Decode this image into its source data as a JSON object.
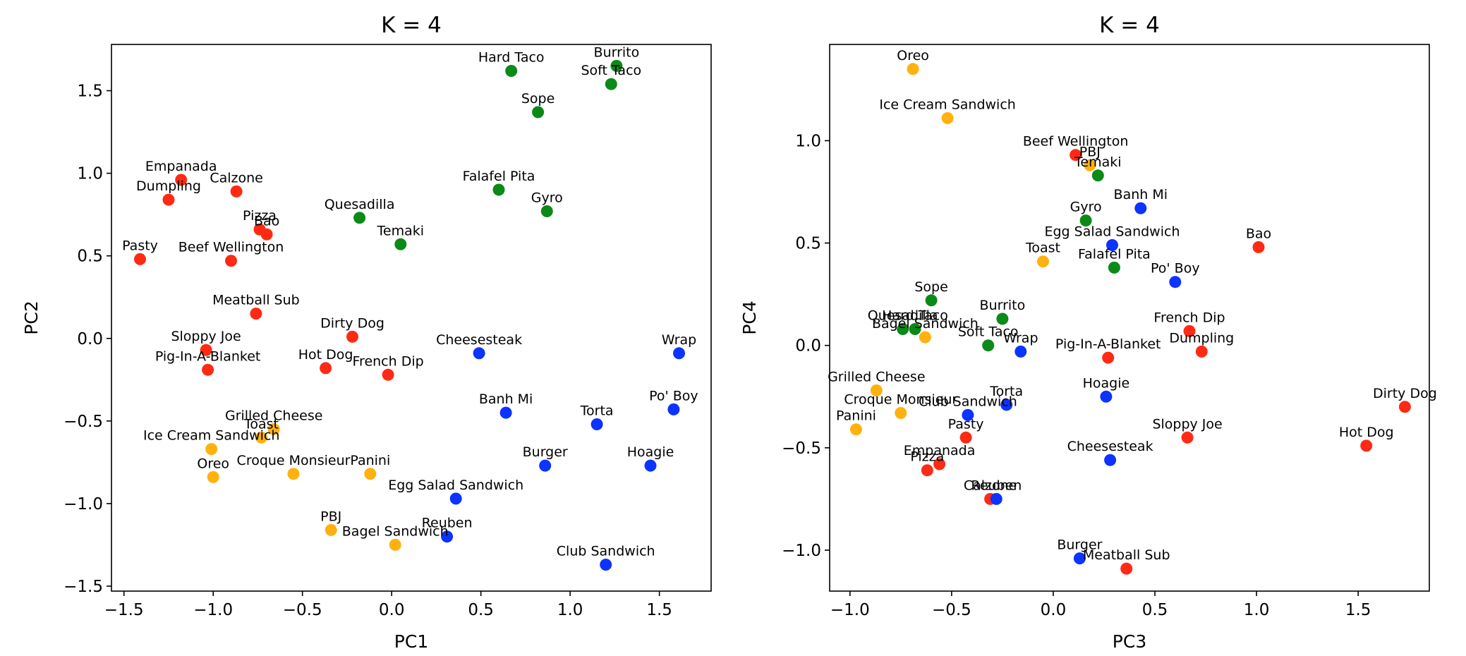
{
  "chart_data": [
    {
      "type": "scatter",
      "title": "K = 4",
      "xlabel": "PC1",
      "ylabel": "PC2",
      "xlim": [
        -1.57,
        1.79
      ],
      "ylim": [
        -1.53,
        1.78
      ],
      "xticks": [
        -1.5,
        -1.0,
        -0.5,
        0.0,
        0.5,
        1.0,
        1.5
      ],
      "xtick_labels": [
        "−1.5",
        "−1.0",
        "−0.5",
        "0.0",
        "0.5",
        "1.0",
        "1.5"
      ],
      "yticks": [
        -1.5,
        -1.0,
        -0.5,
        0.0,
        0.5,
        1.0,
        1.5
      ],
      "ytick_labels": [
        "−1.5",
        "−1.0",
        "−0.5",
        "0.0",
        "0.5",
        "1.0",
        "1.5"
      ],
      "grid": false,
      "points": [
        {
          "label": "Hard Taco",
          "x": 0.67,
          "y": 1.62,
          "cluster": "green"
        },
        {
          "label": "Burrito",
          "x": 1.26,
          "y": 1.65,
          "cluster": "green"
        },
        {
          "label": "Soft Taco",
          "x": 1.23,
          "y": 1.54,
          "cluster": "green"
        },
        {
          "label": "Sope",
          "x": 0.82,
          "y": 1.37,
          "cluster": "green"
        },
        {
          "label": "Falafel Pita",
          "x": 0.6,
          "y": 0.9,
          "cluster": "green"
        },
        {
          "label": "Gyro",
          "x": 0.87,
          "y": 0.77,
          "cluster": "green"
        },
        {
          "label": "Quesadilla",
          "x": -0.18,
          "y": 0.73,
          "cluster": "green"
        },
        {
          "label": "Temaki",
          "x": 0.05,
          "y": 0.57,
          "cluster": "green"
        },
        {
          "label": "Empanada",
          "x": -1.18,
          "y": 0.96,
          "cluster": "red"
        },
        {
          "label": "Calzone",
          "x": -0.87,
          "y": 0.89,
          "cluster": "red"
        },
        {
          "label": "Dumpling",
          "x": -1.25,
          "y": 0.84,
          "cluster": "red"
        },
        {
          "label": "Pizza",
          "x": -0.74,
          "y": 0.66,
          "cluster": "red"
        },
        {
          "label": "Bao",
          "x": -0.7,
          "y": 0.63,
          "cluster": "red"
        },
        {
          "label": "Pasty",
          "x": -1.41,
          "y": 0.48,
          "cluster": "red"
        },
        {
          "label": "Beef Wellington",
          "x": -0.9,
          "y": 0.47,
          "cluster": "red"
        },
        {
          "label": "Meatball Sub",
          "x": -0.76,
          "y": 0.15,
          "cluster": "red"
        },
        {
          "label": "Dirty Dog",
          "x": -0.22,
          "y": 0.01,
          "cluster": "red"
        },
        {
          "label": "Sloppy Joe",
          "x": -1.04,
          "y": -0.07,
          "cluster": "red"
        },
        {
          "label": "Pig-In-A-Blanket",
          "x": -1.03,
          "y": -0.19,
          "cluster": "red"
        },
        {
          "label": "Hot Dog",
          "x": -0.37,
          "y": -0.18,
          "cluster": "red"
        },
        {
          "label": "French Dip",
          "x": -0.02,
          "y": -0.22,
          "cluster": "red"
        },
        {
          "label": "Cheesesteak",
          "x": 0.49,
          "y": -0.09,
          "cluster": "blue"
        },
        {
          "label": "Wrap",
          "x": 1.61,
          "y": -0.09,
          "cluster": "blue"
        },
        {
          "label": "Banh Mi",
          "x": 0.64,
          "y": -0.45,
          "cluster": "blue"
        },
        {
          "label": "Torta",
          "x": 1.15,
          "y": -0.52,
          "cluster": "blue"
        },
        {
          "label": "Po' Boy",
          "x": 1.58,
          "y": -0.43,
          "cluster": "blue"
        },
        {
          "label": "Burger",
          "x": 0.86,
          "y": -0.77,
          "cluster": "blue"
        },
        {
          "label": "Hoagie",
          "x": 1.45,
          "y": -0.77,
          "cluster": "blue"
        },
        {
          "label": "Egg Salad Sandwich",
          "x": 0.36,
          "y": -0.97,
          "cluster": "blue"
        },
        {
          "label": "Reuben",
          "x": 0.31,
          "y": -1.2,
          "cluster": "blue"
        },
        {
          "label": "Club Sandwich",
          "x": 1.2,
          "y": -1.37,
          "cluster": "blue"
        },
        {
          "label": "Grilled Cheese",
          "x": -0.66,
          "y": -0.55,
          "cluster": "orange"
        },
        {
          "label": "Toast",
          "x": -0.73,
          "y": -0.6,
          "cluster": "orange"
        },
        {
          "label": "Ice Cream Sandwich",
          "x": -1.01,
          "y": -0.67,
          "cluster": "orange"
        },
        {
          "label": "Oreo",
          "x": -1.0,
          "y": -0.84,
          "cluster": "orange"
        },
        {
          "label": "Croque Monsieur",
          "x": -0.55,
          "y": -0.82,
          "cluster": "orange"
        },
        {
          "label": "Panini",
          "x": -0.12,
          "y": -0.82,
          "cluster": "orange"
        },
        {
          "label": "PBJ",
          "x": -0.34,
          "y": -1.16,
          "cluster": "orange"
        },
        {
          "label": "Bagel Sandwich",
          "x": 0.02,
          "y": -1.25,
          "cluster": "orange"
        }
      ]
    },
    {
      "type": "scatter",
      "title": "K = 4",
      "xlabel": "PC3",
      "ylabel": "PC4",
      "xlim": [
        -1.1,
        1.85
      ],
      "ylim": [
        -1.2,
        1.47
      ],
      "xticks": [
        -1.0,
        -0.5,
        0.0,
        0.5,
        1.0,
        1.5
      ],
      "xtick_labels": [
        "−1.0",
        "−0.5",
        "0.0",
        "0.5",
        "1.0",
        "1.5"
      ],
      "yticks": [
        -1.0,
        -0.5,
        0.0,
        0.5,
        1.0
      ],
      "ytick_labels": [
        "−1.0",
        "−0.5",
        "0.0",
        "0.5",
        "1.0"
      ],
      "grid": false,
      "points": [
        {
          "label": "Oreo",
          "x": -0.69,
          "y": 1.35,
          "cluster": "orange"
        },
        {
          "label": "Ice Cream Sandwich",
          "x": -0.52,
          "y": 1.11,
          "cluster": "orange"
        },
        {
          "label": "Beef Wellington",
          "x": 0.11,
          "y": 0.93,
          "cluster": "red"
        },
        {
          "label": "PBJ",
          "x": 0.18,
          "y": 0.88,
          "cluster": "orange"
        },
        {
          "label": "Temaki",
          "x": 0.22,
          "y": 0.83,
          "cluster": "green"
        },
        {
          "label": "Gyro",
          "x": 0.16,
          "y": 0.61,
          "cluster": "green"
        },
        {
          "label": "Banh Mi",
          "x": 0.43,
          "y": 0.67,
          "cluster": "blue"
        },
        {
          "label": "Egg Salad Sandwich",
          "x": 0.29,
          "y": 0.49,
          "cluster": "blue"
        },
        {
          "label": "Bao",
          "x": 1.01,
          "y": 0.48,
          "cluster": "red"
        },
        {
          "label": "Toast",
          "x": -0.05,
          "y": 0.41,
          "cluster": "orange"
        },
        {
          "label": "Falafel Pita",
          "x": 0.3,
          "y": 0.38,
          "cluster": "green"
        },
        {
          "label": "Po' Boy",
          "x": 0.6,
          "y": 0.31,
          "cluster": "blue"
        },
        {
          "label": "Sope",
          "x": -0.6,
          "y": 0.22,
          "cluster": "green"
        },
        {
          "label": "Burrito",
          "x": -0.25,
          "y": 0.13,
          "cluster": "green"
        },
        {
          "label": "Quesadilla",
          "x": -0.74,
          "y": 0.08,
          "cluster": "green"
        },
        {
          "label": "Hard Taco",
          "x": -0.68,
          "y": 0.08,
          "cluster": "green"
        },
        {
          "label": "Bagel Sandwich",
          "x": -0.63,
          "y": 0.04,
          "cluster": "orange"
        },
        {
          "label": "Soft Taco",
          "x": -0.32,
          "y": 0.0,
          "cluster": "green"
        },
        {
          "label": "Wrap",
          "x": -0.16,
          "y": -0.03,
          "cluster": "blue"
        },
        {
          "label": "French Dip",
          "x": 0.67,
          "y": 0.07,
          "cluster": "red"
        },
        {
          "label": "Dumpling",
          "x": 0.73,
          "y": -0.03,
          "cluster": "red"
        },
        {
          "label": "Pig-In-A-Blanket",
          "x": 0.27,
          "y": -0.06,
          "cluster": "red"
        },
        {
          "label": "Grilled Cheese",
          "x": -0.87,
          "y": -0.22,
          "cluster": "orange"
        },
        {
          "label": "Hoagie",
          "x": 0.26,
          "y": -0.25,
          "cluster": "blue"
        },
        {
          "label": "Torta",
          "x": -0.23,
          "y": -0.29,
          "cluster": "blue"
        },
        {
          "label": "Club Sandwich",
          "x": -0.42,
          "y": -0.34,
          "cluster": "blue"
        },
        {
          "label": "Croque Monsieur",
          "x": -0.75,
          "y": -0.33,
          "cluster": "orange"
        },
        {
          "label": "Dirty Dog",
          "x": 1.73,
          "y": -0.3,
          "cluster": "red"
        },
        {
          "label": "Panini",
          "x": -0.97,
          "y": -0.41,
          "cluster": "orange"
        },
        {
          "label": "Pasty",
          "x": -0.43,
          "y": -0.45,
          "cluster": "red"
        },
        {
          "label": "Sloppy Joe",
          "x": 0.66,
          "y": -0.45,
          "cluster": "red"
        },
        {
          "label": "Hot Dog",
          "x": 1.54,
          "y": -0.49,
          "cluster": "red"
        },
        {
          "label": "Cheesesteak",
          "x": 0.28,
          "y": -0.56,
          "cluster": "blue"
        },
        {
          "label": "Empanada",
          "x": -0.56,
          "y": -0.58,
          "cluster": "red"
        },
        {
          "label": "Pizza",
          "x": -0.62,
          "y": -0.61,
          "cluster": "red"
        },
        {
          "label": "Calzone",
          "x": -0.31,
          "y": -0.75,
          "cluster": "red"
        },
        {
          "label": "Reuben",
          "x": -0.28,
          "y": -0.75,
          "cluster": "blue"
        },
        {
          "label": "Burger",
          "x": 0.13,
          "y": -1.04,
          "cluster": "blue"
        },
        {
          "label": "Meatball Sub",
          "x": 0.36,
          "y": -1.09,
          "cluster": "red"
        }
      ]
    }
  ],
  "colors": {
    "red": "#ff2a14",
    "green": "#0b8a17",
    "blue": "#0c33ff",
    "orange": "#ffb10f"
  }
}
